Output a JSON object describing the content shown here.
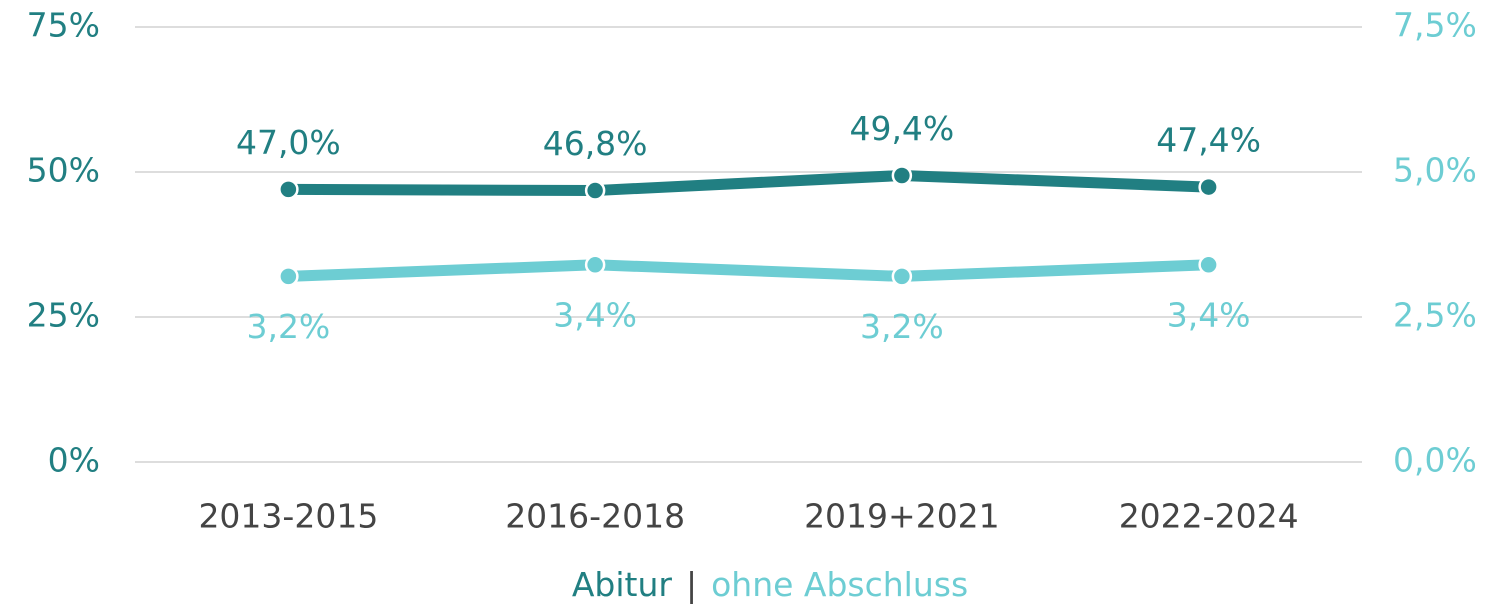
{
  "chart_data": {
    "type": "line",
    "categories": [
      "2013-2015",
      "2016-2018",
      "2019+2021",
      "2022-2024"
    ],
    "series": [
      {
        "name": "Abitur",
        "color": "#217f82",
        "values": [
          47.0,
          46.8,
          49.4,
          47.4
        ],
        "value_labels": [
          "47,0%",
          "46,8%",
          "49,4%",
          "47,4%"
        ]
      },
      {
        "name": "ohne Abschluss",
        "color": "#6dcdd3",
        "axis": "y2",
        "values": [
          3.2,
          3.4,
          3.2,
          3.4
        ],
        "value_labels": [
          "3,2%",
          "3,4%",
          "3,2%",
          "3,4%"
        ]
      }
    ],
    "ylim": [
      0,
      75
    ],
    "yticks": [
      {
        "value": 0,
        "label": "0%"
      },
      {
        "value": 25,
        "label": "25%"
      },
      {
        "value": 50,
        "label": "50%"
      },
      {
        "value": 75,
        "label": "75%"
      }
    ],
    "y2lim": [
      0,
      7.5
    ],
    "y2ticks": [
      {
        "value": 0,
        "label": "0,0%"
      },
      {
        "value": 2.5,
        "label": "2,5%"
      },
      {
        "value": 5,
        "label": "5,0%"
      },
      {
        "value": 7.5,
        "label": "7,5%"
      }
    ],
    "grid": true,
    "legend_separator": "|"
  }
}
